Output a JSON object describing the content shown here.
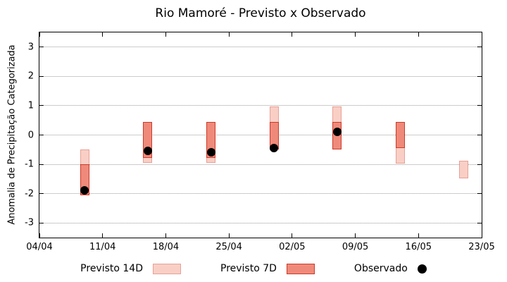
{
  "chart_data": {
    "type": "range-bar",
    "title": "Rio Mamoré - Previsto x Observado",
    "ylabel": "Anomalia de Precipitação Categorizada",
    "ylim": [
      -3.5,
      3.5
    ],
    "yticks": [
      -3,
      -2,
      -1,
      0,
      1,
      2,
      3
    ],
    "xlim_days": [
      0,
      49
    ],
    "xticks": [
      {
        "day": 0,
        "label": "04/04"
      },
      {
        "day": 7,
        "label": "11/04"
      },
      {
        "day": 14,
        "label": "18/04"
      },
      {
        "day": 21,
        "label": "25/04"
      },
      {
        "day": 28,
        "label": "02/05"
      },
      {
        "day": 35,
        "label": "09/05"
      },
      {
        "day": 42,
        "label": "16/05"
      },
      {
        "day": 49,
        "label": "23/05"
      }
    ],
    "points": [
      {
        "day": 5,
        "p14": [
          -2.05,
          -0.5
        ],
        "p7": [
          -2.05,
          -1.0
        ],
        "obs": -1.9
      },
      {
        "day": 12,
        "p14": [
          -0.95,
          0.45
        ],
        "p7": [
          -0.78,
          0.45
        ],
        "obs": -0.55
      },
      {
        "day": 19,
        "p14": [
          -0.95,
          0.45
        ],
        "p7": [
          -0.78,
          0.45
        ],
        "obs": -0.6
      },
      {
        "day": 26,
        "p14": [
          -0.5,
          0.97
        ],
        "p7": [
          -0.5,
          0.45
        ],
        "obs": -0.45
      },
      {
        "day": 33,
        "p14": [
          -0.5,
          0.97
        ],
        "p7": [
          -0.5,
          0.45
        ],
        "obs": 0.1
      },
      {
        "day": 40,
        "p14": [
          -0.97,
          0.45
        ],
        "p7": [
          -0.45,
          0.45
        ],
        "obs": null
      },
      {
        "day": 47,
        "p14": [
          -1.47,
          -0.88
        ],
        "p7": null,
        "obs": null
      }
    ],
    "colors": {
      "p14_fill": "#f9cfc5",
      "p14_border": "#e9a096",
      "p7_fill": "#ef8a7a",
      "p7_border": "#cc3a2a",
      "obs": "#000000",
      "grid": "#9a9a9a"
    },
    "legend": [
      {
        "key": "previsto-14d",
        "label": "Previsto 14D",
        "type": "box",
        "color": "#f9cfc5",
        "border": "#e9a096"
      },
      {
        "key": "previsto-7d",
        "label": "Previsto 7D",
        "type": "box",
        "color": "#ef8a7a",
        "border": "#cc3a2a"
      },
      {
        "key": "observado",
        "label": "Observado",
        "type": "dot",
        "color": "#000000"
      }
    ]
  }
}
